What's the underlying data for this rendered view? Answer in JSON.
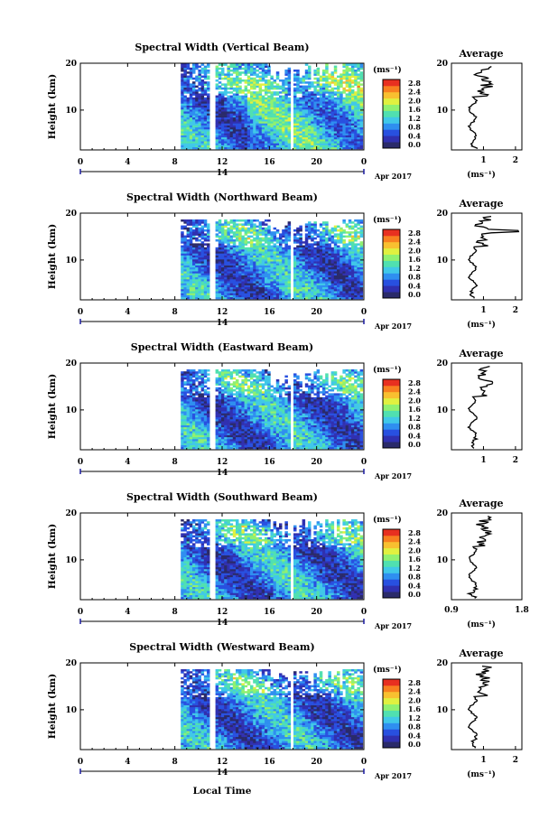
{
  "chart_data": [
    {
      "type": "heatmap",
      "title": "Spectral Width (Vertical Beam)",
      "ylabel": "Height (km)",
      "yticks": [
        "10",
        "20"
      ],
      "xticks": [
        "0",
        "4",
        "8",
        "12",
        "16",
        "20",
        "0"
      ],
      "day_label": "14",
      "date_label": "Apr 2017",
      "colorbar": {
        "unit": "(ms⁻¹)",
        "ticks": [
          "0.0",
          "0.4",
          "0.8",
          "1.2",
          "1.6",
          "2.0",
          "2.4",
          "2.8"
        ]
      },
      "profile": {
        "title": "Average",
        "xlabel": "(ms⁻¹)",
        "xticks": [
          "1",
          "2"
        ],
        "yticks": [
          "10",
          "20"
        ],
        "xlim": [
          0,
          2.2
        ],
        "ylim": [
          1.5,
          20
        ]
      }
    },
    {
      "type": "heatmap",
      "title": "Spectral Width (Northward Beam)",
      "ylabel": "Height (km)",
      "yticks": [
        "10",
        "20"
      ],
      "xticks": [
        "0",
        "4",
        "8",
        "12",
        "16",
        "20",
        "0"
      ],
      "day_label": "14",
      "date_label": "Apr 2017",
      "colorbar": {
        "unit": "(ms⁻¹)",
        "ticks": [
          "0.0",
          "0.4",
          "0.8",
          "1.2",
          "1.6",
          "2.0",
          "2.4",
          "2.8"
        ]
      },
      "profile": {
        "title": "Average",
        "xlabel": "(ms⁻¹)",
        "xticks": [
          "1",
          "2"
        ],
        "yticks": [
          "10",
          "20"
        ],
        "xlim": [
          0,
          2.2
        ],
        "ylim": [
          1.5,
          20
        ]
      }
    },
    {
      "type": "heatmap",
      "title": "Spectral Width (Eastward Beam)",
      "ylabel": "Height (km)",
      "yticks": [
        "10",
        "20"
      ],
      "xticks": [
        "0",
        "4",
        "8",
        "12",
        "16",
        "20",
        "0"
      ],
      "day_label": "14",
      "date_label": "Apr 2017",
      "colorbar": {
        "unit": "(ms⁻¹)",
        "ticks": [
          "0.0",
          "0.4",
          "0.8",
          "1.2",
          "1.6",
          "2.0",
          "2.4",
          "2.8"
        ]
      },
      "profile": {
        "title": "Average",
        "xlabel": "",
        "xticks": [
          "1",
          "2"
        ],
        "yticks": [
          "10",
          "20"
        ],
        "xlim": [
          0,
          2.2
        ],
        "ylim": [
          1.5,
          20
        ]
      }
    },
    {
      "type": "heatmap",
      "title": "Spectral Width (Southward Beam)",
      "ylabel": "Height (km)",
      "yticks": [
        "10",
        "20"
      ],
      "xticks": [
        "0",
        "4",
        "8",
        "12",
        "16",
        "20",
        "0"
      ],
      "day_label": "14",
      "date_label": "Apr 2017",
      "colorbar": {
        "unit": "(ms⁻¹)",
        "ticks": [
          "0.0",
          "0.4",
          "0.8",
          "1.2",
          "1.6",
          "2.0",
          "2.4",
          "2.8"
        ]
      },
      "profile": {
        "title": "Average",
        "xlabel": "(ms⁻¹)",
        "xticks": [
          "0.9",
          "1.8"
        ],
        "yticks": [
          "10",
          "20"
        ],
        "xlim": [
          0.9,
          1.8
        ],
        "ylim": [
          1.5,
          20
        ]
      }
    },
    {
      "type": "heatmap",
      "title": "Spectral Width (Westward Beam)",
      "ylabel": "Height (km)",
      "yticks": [
        "10",
        "20"
      ],
      "xticks": [
        "0",
        "4",
        "8",
        "12",
        "16",
        "20",
        "0"
      ],
      "day_label": "14",
      "date_label": "Apr 2017",
      "colorbar": {
        "unit": "(ms⁻¹)",
        "ticks": [
          "0.0",
          "0.4",
          "0.8",
          "1.2",
          "1.6",
          "2.0",
          "2.4",
          "2.8"
        ]
      },
      "profile": {
        "title": "Average",
        "xlabel": "(ms⁻¹)",
        "xticks": [
          "1",
          "2"
        ],
        "yticks": [
          "10",
          "20"
        ],
        "xlim": [
          0,
          2.2
        ],
        "ylim": [
          1.5,
          20
        ]
      }
    }
  ],
  "shared": {
    "xlabel": "Local Time",
    "xlim": [
      0,
      24
    ],
    "ylim": [
      1.5,
      20
    ],
    "data_start_hour": 8.5,
    "colormap": [
      "#2a2a6a",
      "#3030b0",
      "#2850e0",
      "#2f8ff0",
      "#40c8e8",
      "#50e0b0",
      "#90f070",
      "#e0f040",
      "#f8c030",
      "#f88020",
      "#e83020"
    ],
    "value_range": [
      0,
      3.0
    ]
  }
}
